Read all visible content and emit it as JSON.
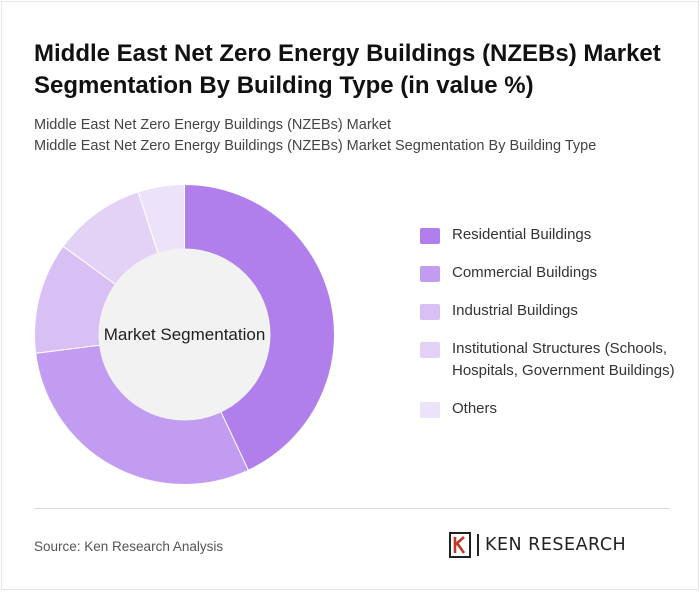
{
  "header": {
    "title": "Middle East Net Zero Energy Buildings (NZEBs) Market Segmentation By Building Type (in value %)",
    "subtitle_line1": "Middle East Net Zero Energy Buildings (NZEBs) Market",
    "subtitle_line2": "Middle East Net Zero Energy Buildings (NZEBs) Market Segmentation By Building Type"
  },
  "chart_data": {
    "type": "pie",
    "donut": true,
    "center_label": "Market Segmentation",
    "categories": [
      "Residential Buildings",
      "Commercial Buildings",
      "Industrial Buildings",
      "Institutional Structures (Schools, Hospitals, Government Buildings)",
      "Others"
    ],
    "values": [
      43,
      30,
      12,
      10,
      5
    ],
    "colors": [
      "#b07fec",
      "#c29cf0",
      "#d8bff4",
      "#e3d2f6",
      "#ece2f9"
    ],
    "legend_position": "right"
  },
  "legend": {
    "items": [
      "Residential Buildings",
      "Commercial Buildings",
      "Industrial Buildings",
      "Institutional Structures (Schools, Hospitals, Government Buildings)",
      "Others"
    ]
  },
  "footer": {
    "source": "Source: Ken Research Analysis",
    "brand": "KEN RESEARCH"
  }
}
